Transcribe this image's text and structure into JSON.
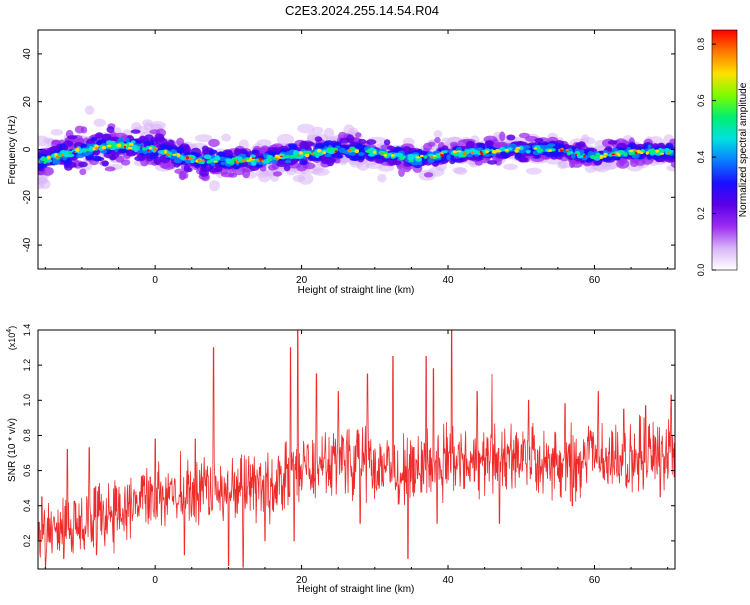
{
  "title": "C2E3.2024.255.14.54.R04",
  "colors": {
    "snr_line": "#ee2a2a",
    "colormap": [
      "#ffffff",
      "#d8b4f8",
      "#9c2cf0",
      "#5a00e8",
      "#1a10ff",
      "#0a7cff",
      "#00e0e0",
      "#00f070",
      "#7cfc00",
      "#ffe000",
      "#ff7800",
      "#ff0000"
    ]
  },
  "chart_data": [
    {
      "type": "heatmap",
      "xlabel": "Height of straight line (km)",
      "ylabel": "Frequency (Hz)",
      "xlim": [
        -16,
        71
      ],
      "ylim": [
        -50,
        50
      ],
      "xticks": [
        0,
        20,
        40,
        60
      ],
      "yticks": [
        -40,
        -20,
        0,
        20,
        40
      ],
      "colorbar": {
        "label": "Normalized spectral amplitude",
        "range": [
          0.0,
          0.85
        ],
        "ticks": [
          "0.0",
          "0.2",
          "0.4",
          "0.6",
          "0.8"
        ]
      },
      "ridge": {
        "center_hz": [
          [
            -16,
            -5
          ],
          [
            -10,
            0
          ],
          [
            -5,
            2
          ],
          [
            0,
            0
          ],
          [
            5,
            -4
          ],
          [
            10,
            -5
          ],
          [
            15,
            -4
          ],
          [
            20,
            -2
          ],
          [
            25,
            0
          ],
          [
            30,
            -1
          ],
          [
            35,
            -4
          ],
          [
            40,
            -2
          ],
          [
            45,
            -1
          ],
          [
            50,
            0
          ],
          [
            55,
            0
          ],
          [
            60,
            -3
          ],
          [
            65,
            -1
          ],
          [
            70,
            -1
          ]
        ],
        "halfwidth_hz": [
          [
            -16,
            8
          ],
          [
            -8,
            10
          ],
          [
            0,
            8
          ],
          [
            10,
            7
          ],
          [
            20,
            7
          ],
          [
            30,
            6
          ],
          [
            40,
            6
          ],
          [
            50,
            5
          ],
          [
            60,
            5
          ],
          [
            70,
            5
          ]
        ]
      }
    },
    {
      "type": "line",
      "xlabel": "Height of straight line (km)",
      "ylabel": "SNR (10 * v/v)",
      "scale_label": "(x10^4)",
      "scale_base": "(x10",
      "scale_exp": "4",
      "xlim": [
        -16,
        71
      ],
      "ylim": [
        0.04,
        1.4
      ],
      "xticks": [
        0,
        20,
        40,
        60
      ],
      "yticks": [
        "0.2",
        "0.4",
        "0.6",
        "0.8",
        "1.0",
        "1.2",
        "1.4"
      ],
      "series": [
        {
          "trend": [
            [
              -16,
              0.22
            ],
            [
              -10,
              0.3
            ],
            [
              -5,
              0.38
            ],
            [
              0,
              0.45
            ],
            [
              5,
              0.47
            ],
            [
              10,
              0.48
            ],
            [
              15,
              0.52
            ],
            [
              20,
              0.6
            ],
            [
              25,
              0.65
            ],
            [
              30,
              0.64
            ],
            [
              35,
              0.6
            ],
            [
              40,
              0.66
            ],
            [
              45,
              0.67
            ],
            [
              50,
              0.65
            ],
            [
              55,
              0.64
            ],
            [
              60,
              0.66
            ],
            [
              65,
              0.68
            ],
            [
              70,
              0.7
            ]
          ],
          "peaks": [
            [
              -15.5,
              0.45
            ],
            [
              -12,
              0.72
            ],
            [
              -9,
              0.73
            ],
            [
              0,
              0.78
            ],
            [
              5.5,
              0.78
            ],
            [
              8,
              1.3
            ],
            [
              10,
              0.98
            ],
            [
              15,
              1.02
            ],
            [
              18.5,
              1.3
            ],
            [
              19.5,
              1.4
            ],
            [
              22,
              1.15
            ],
            [
              25,
              1.05
            ],
            [
              29,
              1.15
            ],
            [
              32.5,
              1.25
            ],
            [
              34.5,
              1.0
            ],
            [
              37,
              1.25
            ],
            [
              38,
              1.18
            ],
            [
              40.5,
              1.4
            ],
            [
              44,
              1.05
            ],
            [
              46,
              1.15
            ],
            [
              51,
              1.0
            ],
            [
              56,
              0.98
            ],
            [
              60.5,
              1.05
            ],
            [
              64,
              0.95
            ],
            [
              67,
              0.97
            ],
            [
              70.5,
              1.03
            ]
          ],
          "dips": [
            [
              -15,
              0.05
            ],
            [
              -12.5,
              0.1
            ],
            [
              -8,
              0.12
            ],
            [
              4,
              0.12
            ],
            [
              10,
              0.06
            ],
            [
              12,
              0.05
            ],
            [
              15,
              0.2
            ],
            [
              19,
              0.2
            ],
            [
              28,
              0.3
            ],
            [
              34.5,
              0.1
            ],
            [
              38.5,
              0.3
            ],
            [
              47,
              0.3
            ],
            [
              57,
              0.4
            ],
            [
              69,
              0.45
            ]
          ]
        }
      ]
    }
  ]
}
